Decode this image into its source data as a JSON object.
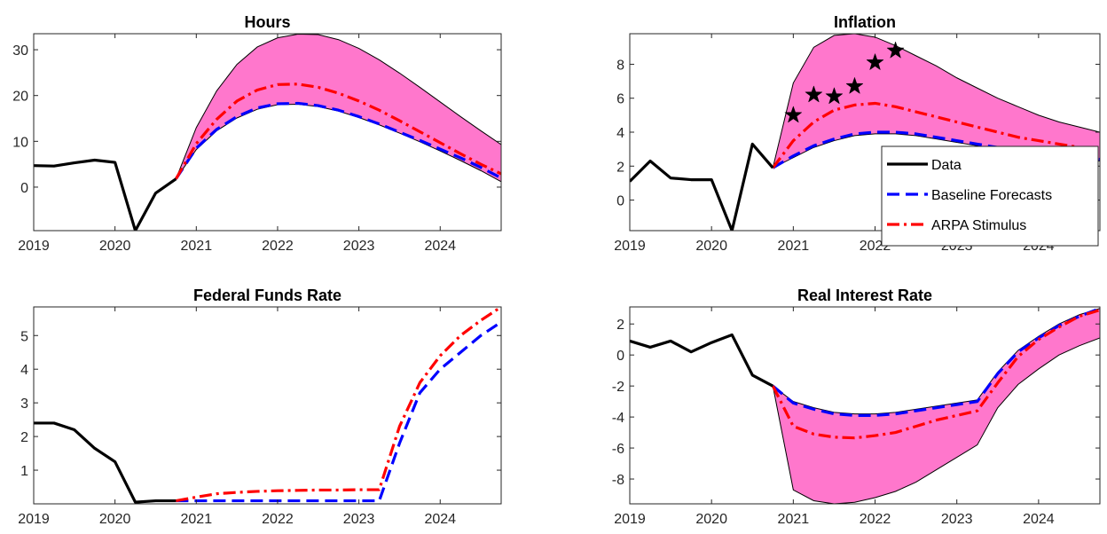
{
  "colors": {
    "data": "#000000",
    "baseline": "#0000ff",
    "arpa": "#ff0000",
    "band": "#ff77cc"
  },
  "legend": {
    "items": [
      {
        "label": "Data",
        "style": "solid",
        "color": "#000000"
      },
      {
        "label": "Baseline Forecasts",
        "style": "dashed",
        "color": "#0000ff"
      },
      {
        "label": "ARPA Stimulus",
        "style": "dashdot",
        "color": "#ff0000"
      }
    ],
    "placement": "inside, lower-right of Inflation panel"
  },
  "chart_data": [
    {
      "type": "line",
      "title": "Hours",
      "xlim": [
        2019,
        2024.75
      ],
      "ylim": [
        -9.5,
        33.5
      ],
      "x_ticks": [
        2019,
        2020,
        2021,
        2022,
        2023,
        2024
      ],
      "y_ticks": [
        0,
        10,
        20,
        30
      ],
      "grid": false,
      "series": [
        {
          "name": "Data",
          "style": "solid",
          "x": [
            2019,
            2019.25,
            2019.5,
            2019.75,
            2020,
            2020.25,
            2020.5,
            2020.75
          ],
          "values": [
            4.7,
            4.6,
            5.3,
            5.9,
            5.4,
            -9.5,
            -1.3,
            1.8
          ]
        },
        {
          "name": "Baseline Forecasts",
          "style": "dashed",
          "x": [
            2020.75,
            2021,
            2021.25,
            2021.5,
            2021.75,
            2022,
            2022.25,
            2022.5,
            2022.75,
            2023,
            2023.25,
            2023.5,
            2023.75,
            2024,
            2024.25,
            2024.5,
            2024.75
          ],
          "values": [
            1.8,
            8.5,
            12.6,
            15.4,
            17.3,
            18.2,
            18.3,
            17.8,
            16.8,
            15.4,
            13.8,
            12.0,
            10.2,
            8.3,
            6.4,
            4.3,
            2.0
          ]
        },
        {
          "name": "ARPA Stimulus",
          "style": "dashdot",
          "x": [
            2020.75,
            2021,
            2021.25,
            2021.5,
            2021.75,
            2022,
            2022.25,
            2022.5,
            2022.75,
            2023,
            2023.25,
            2023.5,
            2023.75,
            2024,
            2024.25,
            2024.5,
            2024.75
          ],
          "values": [
            1.8,
            9.5,
            14.8,
            18.8,
            21.2,
            22.4,
            22.5,
            21.8,
            20.5,
            18.8,
            16.8,
            14.5,
            12.1,
            9.7,
            7.3,
            5.0,
            2.9
          ]
        }
      ],
      "band": {
        "x": [
          2020.75,
          2021,
          2021.25,
          2021.5,
          2021.75,
          2022,
          2022.25,
          2022.5,
          2022.75,
          2023,
          2023.25,
          2023.5,
          2023.75,
          2024,
          2024.25,
          2024.5,
          2024.75
        ],
        "upper": [
          1.8,
          13.0,
          21.0,
          26.8,
          30.6,
          32.6,
          33.4,
          33.3,
          32.2,
          30.3,
          27.8,
          24.9,
          21.8,
          18.6,
          15.4,
          12.3,
          9.3
        ],
        "lower": [
          1.8,
          8.2,
          12.3,
          15.1,
          17.0,
          18.0,
          18.1,
          17.6,
          16.6,
          15.2,
          13.6,
          11.8,
          9.9,
          7.9,
          5.8,
          3.6,
          1.2
        ]
      }
    },
    {
      "type": "line",
      "title": "Inflation",
      "xlim": [
        2019,
        2024.75
      ],
      "ylim": [
        -1.8,
        9.8
      ],
      "x_ticks": [
        2019,
        2020,
        2021,
        2022,
        2023,
        2024
      ],
      "y_ticks": [
        0,
        2,
        4,
        6,
        8
      ],
      "grid": false,
      "series": [
        {
          "name": "Data",
          "style": "solid",
          "x": [
            2019,
            2019.25,
            2019.5,
            2019.75,
            2020,
            2020.25,
            2020.5,
            2020.75
          ],
          "values": [
            1.1,
            2.3,
            1.3,
            1.2,
            1.2,
            -1.8,
            3.3,
            1.9
          ]
        },
        {
          "name": "Baseline Forecasts",
          "style": "dashed",
          "x": [
            2020.75,
            2021,
            2021.25,
            2021.5,
            2021.75,
            2022,
            2022.25,
            2022.5,
            2022.75,
            2023,
            2023.25,
            2023.5,
            2023.75,
            2024,
            2024.25,
            2024.5,
            2024.75
          ],
          "values": [
            1.9,
            2.6,
            3.2,
            3.6,
            3.9,
            4.0,
            4.0,
            3.9,
            3.7,
            3.5,
            3.3,
            3.1,
            2.9,
            2.8,
            2.6,
            2.5,
            2.4
          ]
        },
        {
          "name": "ARPA Stimulus",
          "style": "dashdot",
          "x": [
            2020.75,
            2021,
            2021.25,
            2021.5,
            2021.75,
            2022,
            2022.25,
            2022.5,
            2022.75,
            2023,
            2023.25,
            2023.5,
            2023.75,
            2024,
            2024.25,
            2024.5,
            2024.75
          ],
          "values": [
            1.9,
            3.5,
            4.6,
            5.3,
            5.6,
            5.7,
            5.5,
            5.2,
            4.9,
            4.6,
            4.3,
            4.0,
            3.7,
            3.5,
            3.3,
            3.1,
            2.9
          ]
        }
      ],
      "band": {
        "x": [
          2020.75,
          2021,
          2021.25,
          2021.5,
          2021.75,
          2022,
          2022.25,
          2022.5,
          2022.75,
          2023,
          2023.25,
          2023.5,
          2023.75,
          2024,
          2024.25,
          2024.5,
          2024.75
        ],
        "upper": [
          1.9,
          6.9,
          9.0,
          9.7,
          9.8,
          9.6,
          9.1,
          8.5,
          7.9,
          7.2,
          6.6,
          6.0,
          5.5,
          5.0,
          4.6,
          4.3,
          4.0
        ],
        "lower": [
          1.9,
          2.5,
          3.1,
          3.5,
          3.8,
          3.9,
          3.9,
          3.8,
          3.6,
          3.4,
          3.2,
          3.0,
          2.8,
          2.6,
          2.5,
          2.4,
          2.3
        ]
      },
      "markers": {
        "shape": "star",
        "x": [
          2021,
          2021.25,
          2021.5,
          2021.75,
          2022,
          2022.25
        ],
        "values": [
          5.0,
          6.2,
          6.1,
          6.7,
          8.1,
          8.8
        ]
      }
    },
    {
      "type": "line",
      "title": "Federal Funds Rate",
      "xlim": [
        2019,
        2024.75
      ],
      "ylim": [
        0,
        5.85
      ],
      "x_ticks": [
        2019,
        2020,
        2021,
        2022,
        2023,
        2024
      ],
      "y_ticks": [
        1,
        2,
        3,
        4,
        5
      ],
      "grid": false,
      "series": [
        {
          "name": "Data",
          "style": "solid",
          "x": [
            2019,
            2019.25,
            2019.5,
            2019.75,
            2020,
            2020.25,
            2020.5,
            2020.75
          ],
          "values": [
            2.4,
            2.4,
            2.2,
            1.65,
            1.25,
            0.05,
            0.09,
            0.09
          ]
        },
        {
          "name": "Baseline Forecasts",
          "style": "dashed",
          "x": [
            2020.75,
            2021,
            2021.25,
            2021.5,
            2021.75,
            2022,
            2022.25,
            2022.5,
            2022.75,
            2023,
            2023.25,
            2023.5,
            2023.75,
            2024,
            2024.25,
            2024.5,
            2024.75
          ],
          "values": [
            0.09,
            0.09,
            0.09,
            0.09,
            0.09,
            0.09,
            0.09,
            0.09,
            0.09,
            0.09,
            0.09,
            1.8,
            3.3,
            4.0,
            4.5,
            5.0,
            5.4
          ]
        },
        {
          "name": "ARPA Stimulus",
          "style": "dashdot",
          "x": [
            2020.75,
            2021,
            2021.25,
            2021.5,
            2021.75,
            2022,
            2022.25,
            2022.5,
            2022.75,
            2023,
            2023.25,
            2023.5,
            2023.75,
            2024,
            2024.25,
            2024.5,
            2024.75
          ],
          "values": [
            0.09,
            0.2,
            0.3,
            0.34,
            0.37,
            0.39,
            0.4,
            0.41,
            0.41,
            0.42,
            0.42,
            2.3,
            3.6,
            4.4,
            5.0,
            5.45,
            5.85
          ]
        }
      ]
    },
    {
      "type": "line",
      "title": "Real Interest Rate",
      "xlim": [
        2019,
        2024.75
      ],
      "ylim": [
        -9.6,
        3.1
      ],
      "x_ticks": [
        2019,
        2020,
        2021,
        2022,
        2023,
        2024
      ],
      "y_ticks": [
        -8,
        -6,
        -4,
        -2,
        0,
        2
      ],
      "grid": false,
      "series": [
        {
          "name": "Data",
          "style": "solid",
          "x": [
            2019,
            2019.25,
            2019.5,
            2019.75,
            2020,
            2020.25,
            2020.5,
            2020.75
          ],
          "values": [
            0.9,
            0.5,
            0.9,
            0.2,
            0.8,
            1.3,
            -1.3,
            -2.0
          ]
        },
        {
          "name": "Baseline Forecasts",
          "style": "dashed",
          "x": [
            2020.75,
            2021,
            2021.25,
            2021.5,
            2021.75,
            2022,
            2022.25,
            2022.5,
            2022.75,
            2023,
            2023.25,
            2023.5,
            2023.75,
            2024,
            2024.25,
            2024.5,
            2024.75
          ],
          "values": [
            -2.0,
            -3.1,
            -3.5,
            -3.8,
            -3.9,
            -3.9,
            -3.8,
            -3.6,
            -3.4,
            -3.2,
            -3.0,
            -1.2,
            0.2,
            1.1,
            1.9,
            2.5,
            3.0
          ]
        },
        {
          "name": "ARPA Stimulus",
          "style": "dashdot",
          "x": [
            2020.75,
            2021,
            2021.25,
            2021.5,
            2021.75,
            2022,
            2022.25,
            2022.5,
            2022.75,
            2023,
            2023.25,
            2023.5,
            2023.75,
            2024,
            2024.25,
            2024.5,
            2024.75
          ],
          "values": [
            -2.0,
            -4.6,
            -5.1,
            -5.3,
            -5.35,
            -5.2,
            -5.0,
            -4.6,
            -4.2,
            -3.9,
            -3.6,
            -1.8,
            -0.1,
            1.0,
            1.8,
            2.5,
            2.9
          ]
        }
      ],
      "band": {
        "x": [
          2020.75,
          2021,
          2021.25,
          2021.5,
          2021.75,
          2022,
          2022.25,
          2022.5,
          2022.75,
          2023,
          2023.25,
          2023.5,
          2023.75,
          2024,
          2024.25,
          2024.5,
          2024.75
        ],
        "upper": [
          -2.0,
          -3.0,
          -3.4,
          -3.7,
          -3.8,
          -3.8,
          -3.7,
          -3.5,
          -3.3,
          -3.1,
          -2.9,
          -1.1,
          0.3,
          1.2,
          2.0,
          2.6,
          3.0
        ],
        "lower": [
          -2.0,
          -8.7,
          -9.4,
          -9.6,
          -9.5,
          -9.2,
          -8.8,
          -8.2,
          -7.4,
          -6.6,
          -5.8,
          -3.4,
          -1.9,
          -0.9,
          0.0,
          0.6,
          1.1
        ]
      }
    }
  ]
}
